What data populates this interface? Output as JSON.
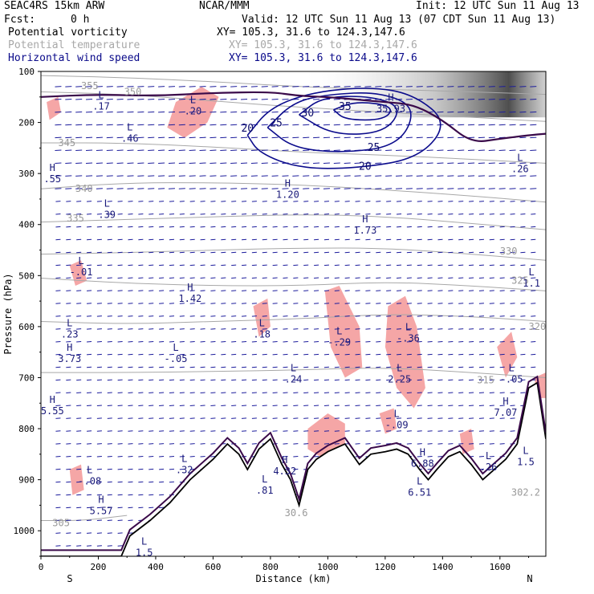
{
  "header": {
    "model": "SEAC4RS 15km ARW",
    "org": "NCAR/MMM",
    "init": "Init: 12 UTC Sun 11 Aug 13",
    "fcst_label": "Fcst:",
    "fcst_value": "0 h",
    "valid": "Valid: 12 UTC Sun 11 Aug 13 (07 CDT Sun 11 Aug 13)",
    "fields": [
      {
        "name": "Potential vorticity",
        "xy": "XY= 105.3, 31.6 to 124.3,147.6",
        "color": "#000000"
      },
      {
        "name": "Potential temperature",
        "xy": "XY= 105.3, 31.6 to 124.3,147.6",
        "color": "#a8a8a8"
      },
      {
        "name": "Horizontal wind speed",
        "xy": "XY= 105.3, 31.6 to 124.3,147.6",
        "color": "#0a0a8a"
      }
    ]
  },
  "chart_data": {
    "type": "cross-section",
    "xlabel": "Distance (km)",
    "ylabel": "Pressure (hPa)",
    "xlim": [
      0,
      1760
    ],
    "ylim": [
      1050,
      100
    ],
    "x_ticks": [
      0,
      200,
      400,
      600,
      800,
      1000,
      1200,
      1400,
      1600
    ],
    "y_ticks": [
      100,
      200,
      300,
      400,
      500,
      600,
      700,
      800,
      900,
      1000
    ],
    "x_end_labels": {
      "left": "S",
      "right": "N"
    },
    "colors": {
      "pv_positive": "#f5a6a6",
      "wind_contour": "#0c0c8c",
      "theta": "#a8a8a8",
      "terrain": "#000000",
      "tropopause": "#3a0a4a"
    },
    "theta_contours": [
      {
        "label": "355",
        "points": [
          [
            0,
            108
          ],
          [
            300,
            112
          ],
          [
            600,
            120
          ],
          [
            900,
            130
          ],
          [
            1200,
            135
          ],
          [
            1500,
            140
          ],
          [
            1760,
            145
          ]
        ],
        "label_at": [
          140,
          128
        ]
      },
      {
        "label": "350",
        "points": [
          [
            0,
            140
          ],
          [
            300,
            145
          ],
          [
            600,
            158
          ],
          [
            900,
            170
          ],
          [
            1200,
            180
          ],
          [
            1500,
            190
          ],
          [
            1760,
            198
          ]
        ],
        "label_at": [
          290,
          140
        ]
      },
      {
        "label": "345",
        "points": [
          [
            0,
            240
          ],
          [
            300,
            240
          ],
          [
            600,
            248
          ],
          [
            900,
            258
          ],
          [
            1200,
            264
          ],
          [
            1500,
            272
          ],
          [
            1760,
            280
          ]
        ],
        "label_at": [
          60,
          240
        ]
      },
      {
        "label": "340",
        "points": [
          [
            0,
            330
          ],
          [
            300,
            318
          ],
          [
            600,
            318
          ],
          [
            900,
            322
          ],
          [
            1200,
            332
          ],
          [
            1500,
            344
          ],
          [
            1760,
            356
          ]
        ],
        "label_at": [
          120,
          330
        ]
      },
      {
        "label": "335",
        "points": [
          [
            0,
            395
          ],
          [
            300,
            390
          ],
          [
            600,
            385
          ],
          [
            900,
            380
          ],
          [
            1200,
            384
          ],
          [
            1500,
            398
          ],
          [
            1760,
            410
          ]
        ],
        "label_at": [
          90,
          388
        ]
      },
      {
        "label": "330",
        "points": [
          [
            0,
            458
          ],
          [
            300,
            455
          ],
          [
            600,
            450
          ],
          [
            900,
            446
          ],
          [
            1200,
            446
          ],
          [
            1500,
            458
          ],
          [
            1760,
            470
          ]
        ],
        "label_at": [
          1600,
          452
        ]
      },
      {
        "label": "325",
        "points": [
          [
            0,
            505
          ],
          [
            300,
            515
          ],
          [
            600,
            520
          ],
          [
            900,
            520
          ],
          [
            1200,
            512
          ],
          [
            1500,
            520
          ],
          [
            1760,
            530
          ]
        ],
        "label_at": [
          1640,
          510
        ]
      },
      {
        "label": "320",
        "points": [
          [
            0,
            590
          ],
          [
            300,
            595
          ],
          [
            600,
            590
          ],
          [
            900,
            585
          ],
          [
            1200,
            575
          ],
          [
            1500,
            580
          ],
          [
            1760,
            590
          ]
        ],
        "label_at": [
          1700,
          600
        ]
      },
      {
        "label": "315",
        "points": [
          [
            0,
            690
          ],
          [
            300,
            690
          ],
          [
            600,
            688
          ],
          [
            900,
            685
          ],
          [
            1200,
            680
          ],
          [
            1500,
            690
          ],
          [
            1760,
            700
          ]
        ],
        "label_at": [
          1520,
          705
        ]
      },
      {
        "label": "305",
        "points": [
          [
            0,
            980
          ],
          [
            150,
            980
          ],
          [
            300,
            970
          ]
        ],
        "label_at": [
          40,
          985
        ]
      }
    ],
    "wind_speed_contours": [
      {
        "label": "20",
        "points": [
          [
            720,
            225
          ],
          [
            800,
            170
          ],
          [
            950,
            140
          ],
          [
            1150,
            130
          ],
          [
            1300,
            145
          ],
          [
            1420,
            200
          ],
          [
            1320,
            270
          ],
          [
            1100,
            290
          ],
          [
            900,
            290
          ],
          [
            760,
            260
          ],
          [
            720,
            225
          ]
        ],
        "label_at": [
          720,
          210
        ]
      },
      {
        "label": "25",
        "points": [
          [
            790,
            210
          ],
          [
            880,
            160
          ],
          [
            1000,
            145
          ],
          [
            1180,
            140
          ],
          [
            1310,
            170
          ],
          [
            1250,
            245
          ],
          [
            1050,
            260
          ],
          [
            880,
            250
          ],
          [
            790,
            210
          ]
        ],
        "label_at": [
          820,
          200
        ]
      },
      {
        "label": "30",
        "points": [
          [
            900,
            185
          ],
          [
            980,
            150
          ],
          [
            1150,
            148
          ],
          [
            1260,
            170
          ],
          [
            1200,
            220
          ],
          [
            1020,
            225
          ],
          [
            900,
            185
          ]
        ],
        "label_at": [
          930,
          180
        ]
      },
      {
        "label": "35",
        "points": [
          [
            1020,
            175
          ],
          [
            1100,
            158
          ],
          [
            1230,
            168
          ],
          [
            1200,
            195
          ],
          [
            1060,
            195
          ],
          [
            1020,
            175
          ]
        ],
        "label_at": [
          1060,
          168
        ]
      }
    ],
    "wind_speed_labels": [
      {
        "label": "20",
        "at": [
          720,
          210
        ]
      },
      {
        "label": "25",
        "at": [
          820,
          200
        ]
      },
      {
        "label": "30",
        "at": [
          930,
          180
        ]
      },
      {
        "label": "35",
        "at": [
          1060,
          168
        ]
      },
      {
        "label": "25",
        "at": [
          1160,
          248
        ]
      },
      {
        "label": "20",
        "at": [
          1130,
          285
        ]
      }
    ],
    "pv_extrema": [
      {
        "type": "L",
        "value": ".17",
        "at": [
          210,
          165
        ]
      },
      {
        "type": "L",
        "value": ".20",
        "at": [
          530,
          175
        ]
      },
      {
        "type": "L",
        "value": ".46",
        "at": [
          310,
          228
        ]
      },
      {
        "type": "H",
        "value": "35.93",
        "at": [
          1220,
          170
        ]
      },
      {
        "type": "H",
        "value": ".55",
        "at": [
          40,
          308
        ]
      },
      {
        "type": "L",
        "value": ".26",
        "at": [
          1670,
          288
        ]
      },
      {
        "type": "H",
        "value": "1.20",
        "at": [
          860,
          338
        ]
      },
      {
        "type": "L",
        "value": ".39",
        "at": [
          230,
          378
        ]
      },
      {
        "type": "H",
        "value": "1.73",
        "at": [
          1130,
          408
        ]
      },
      {
        "type": "L",
        "value": "-.01",
        "at": [
          140,
          490
        ]
      },
      {
        "type": "H",
        "value": "1.42",
        "at": [
          520,
          542
        ]
      },
      {
        "type": "L",
        "value": "1.1",
        "at": [
          1710,
          512
        ]
      },
      {
        "type": "L",
        "value": ".23",
        "at": [
          100,
          612
        ]
      },
      {
        "type": "L",
        "value": ".18",
        "at": [
          770,
          612
        ]
      },
      {
        "type": "L",
        "value": "-.29",
        "at": [
          1040,
          628
        ]
      },
      {
        "type": "L",
        "value": "-.36",
        "at": [
          1280,
          620
        ]
      },
      {
        "type": "H",
        "value": "3.73",
        "at": [
          100,
          660
        ]
      },
      {
        "type": "L",
        "value": "-.05",
        "at": [
          470,
          660
        ]
      },
      {
        "type": "L",
        "value": ".24",
        "at": [
          880,
          700
        ]
      },
      {
        "type": "L",
        "value": "2.25",
        "at": [
          1250,
          700
        ]
      },
      {
        "type": "L",
        "value": "-.05",
        "at": [
          1640,
          700
        ]
      },
      {
        "type": "H",
        "value": "5.55",
        "at": [
          40,
          762
        ]
      },
      {
        "type": "H",
        "value": "7.07",
        "at": [
          1620,
          765
        ]
      },
      {
        "type": "L",
        "value": "-.09",
        "at": [
          1240,
          790
        ]
      },
      {
        "type": "L",
        "value": ".32",
        "at": [
          500,
          878
        ]
      },
      {
        "type": "L",
        "value": "-.08",
        "at": [
          170,
          900
        ]
      },
      {
        "type": "H",
        "value": "4.32",
        "at": [
          850,
          880
        ]
      },
      {
        "type": "H",
        "value": "6.88",
        "at": [
          1330,
          865
        ]
      },
      {
        "type": "L",
        "value": ".26",
        "at": [
          1560,
          872
        ]
      },
      {
        "type": "L",
        "value": "1.5",
        "at": [
          1690,
          862
        ]
      },
      {
        "type": "L",
        "value": ".81",
        "at": [
          780,
          918
        ]
      },
      {
        "type": "L",
        "value": "6.51",
        "at": [
          1320,
          922
        ]
      },
      {
        "type": "H",
        "value": "5.57",
        "at": [
          210,
          958
        ]
      },
      {
        "type": "L",
        "value": "1.5",
        "at": [
          360,
          1040
        ]
      }
    ],
    "theta_labels_extra": [
      {
        "label": "30.6",
        "at": [
          890,
          965
        ]
      },
      {
        "label": "302.2",
        "at": [
          1690,
          925
        ]
      }
    ],
    "terrain": [
      [
        0,
        1050
      ],
      [
        280,
        1050
      ],
      [
        310,
        1010
      ],
      [
        380,
        980
      ],
      [
        450,
        945
      ],
      [
        520,
        900
      ],
      [
        600,
        860
      ],
      [
        650,
        830
      ],
      [
        690,
        850
      ],
      [
        720,
        880
      ],
      [
        760,
        840
      ],
      [
        800,
        820
      ],
      [
        840,
        870
      ],
      [
        870,
        900
      ],
      [
        900,
        950
      ],
      [
        930,
        880
      ],
      [
        960,
        860
      ],
      [
        1000,
        845
      ],
      [
        1060,
        830
      ],
      [
        1110,
        870
      ],
      [
        1150,
        850
      ],
      [
        1200,
        845
      ],
      [
        1240,
        840
      ],
      [
        1280,
        850
      ],
      [
        1320,
        880
      ],
      [
        1350,
        900
      ],
      [
        1380,
        880
      ],
      [
        1420,
        855
      ],
      [
        1460,
        845
      ],
      [
        1500,
        870
      ],
      [
        1540,
        900
      ],
      [
        1580,
        880
      ],
      [
        1620,
        860
      ],
      [
        1660,
        830
      ],
      [
        1700,
        720
      ],
      [
        1730,
        710
      ],
      [
        1760,
        820
      ]
    ]
  }
}
